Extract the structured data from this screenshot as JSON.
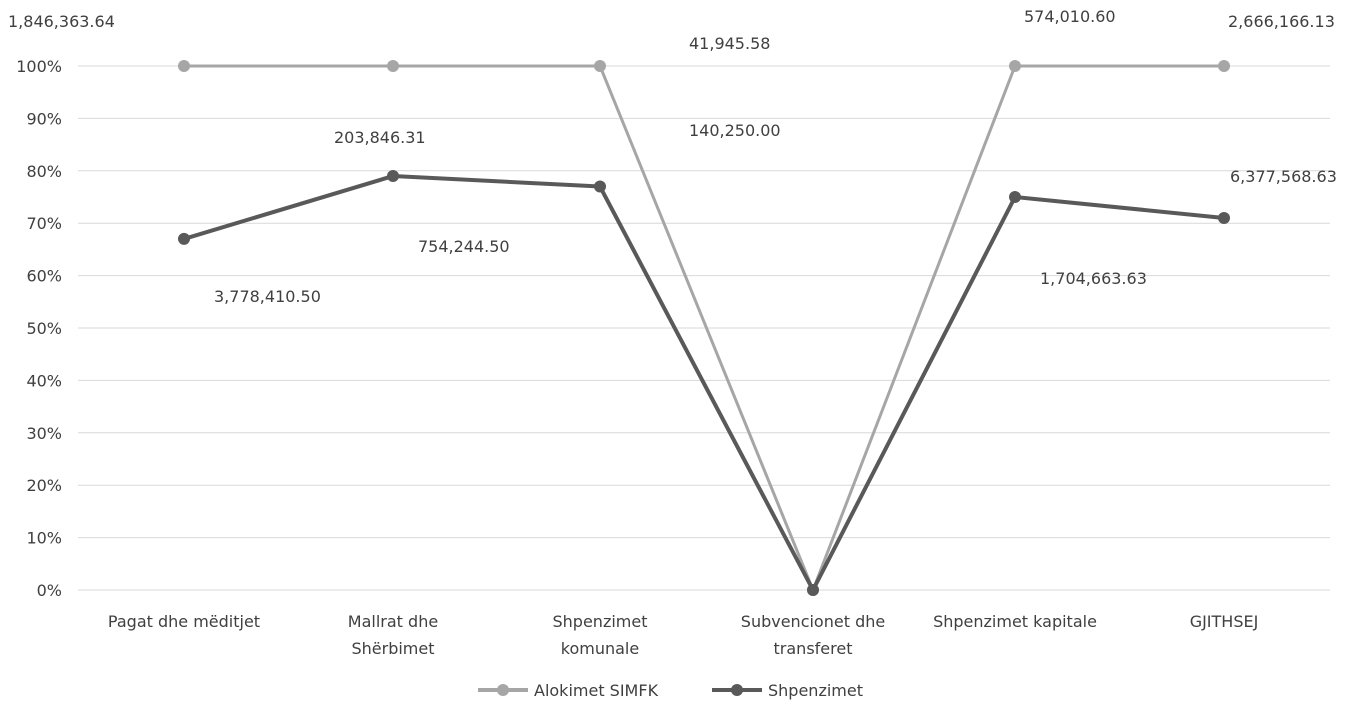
{
  "chart_data": {
    "type": "line",
    "categories": [
      "Pagat dhe mëditjet",
      "Mallrat dhe Shërbimet",
      "Shpenzimet komunale",
      "Subvencionet dhe transferet",
      "Shpenzimet kapitale",
      "GJITHSEJ"
    ],
    "category_lines": [
      [
        "Pagat dhe mëditjet"
      ],
      [
        "Mallrat dhe",
        "Shërbimet"
      ],
      [
        "Shpenzimet",
        "komunale"
      ],
      [
        "Subvencionet dhe",
        "transferet"
      ],
      [
        "Shpenzimet kapitale"
      ],
      [
        "GJITHSEJ"
      ]
    ],
    "yticks": [
      "0%",
      "10%",
      "20%",
      "30%",
      "40%",
      "50%",
      "60%",
      "70%",
      "80%",
      "90%",
      "100%"
    ],
    "ylim": [
      0,
      100
    ],
    "grid": true,
    "legend_position": "bottom",
    "series": [
      {
        "name": "Alokimet SIMFK",
        "color": "#a6a6a6",
        "values": [
          100,
          100,
          100,
          0,
          100,
          100
        ]
      },
      {
        "name": "Shpenzimet",
        "color": "#595959",
        "values": [
          67,
          79,
          77,
          0,
          75,
          71
        ]
      }
    ],
    "data_labels": [
      "1,846,363.64",
      "3,778,410.50",
      "203,846.31",
      "754,244.50",
      "41,945.58",
      "140,250.00",
      "574,010.60",
      "1,704,663.63",
      "2,666,166.13",
      "6,377,568.63"
    ]
  }
}
